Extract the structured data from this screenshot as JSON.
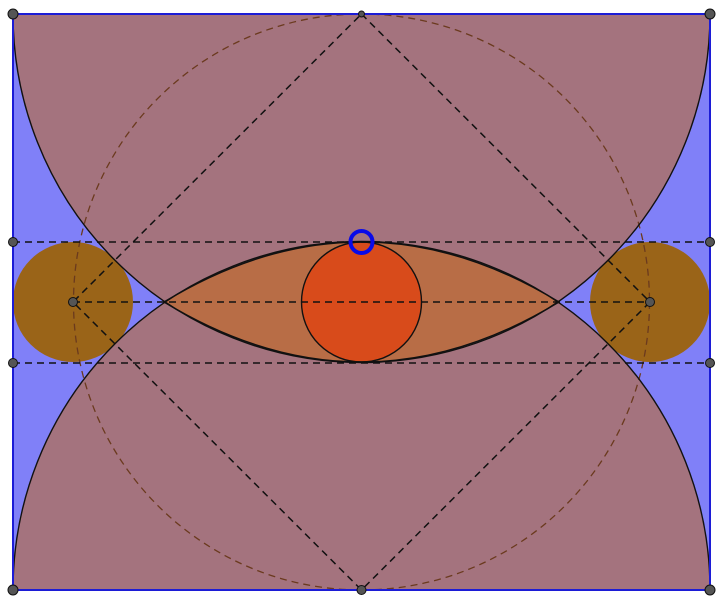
{
  "colors": {
    "background": "#ffffff",
    "rect_fill": "#8080f8",
    "rect_stroke": "#1c1cd6",
    "mauve_fill": "#a4737e",
    "lens_fill": "#b86d46",
    "inner_circle_fill": "#d84b1b",
    "side_circle_fill": "#9a6418",
    "dashed_circle_stroke": "#6b3a1e",
    "line_stroke": "#111111",
    "point_fill": "#555555",
    "highlight_ring": "#0a0ae8"
  },
  "icons": {
    "vertex_point": "filled-dot",
    "selected_point": "hollow-ring"
  }
}
